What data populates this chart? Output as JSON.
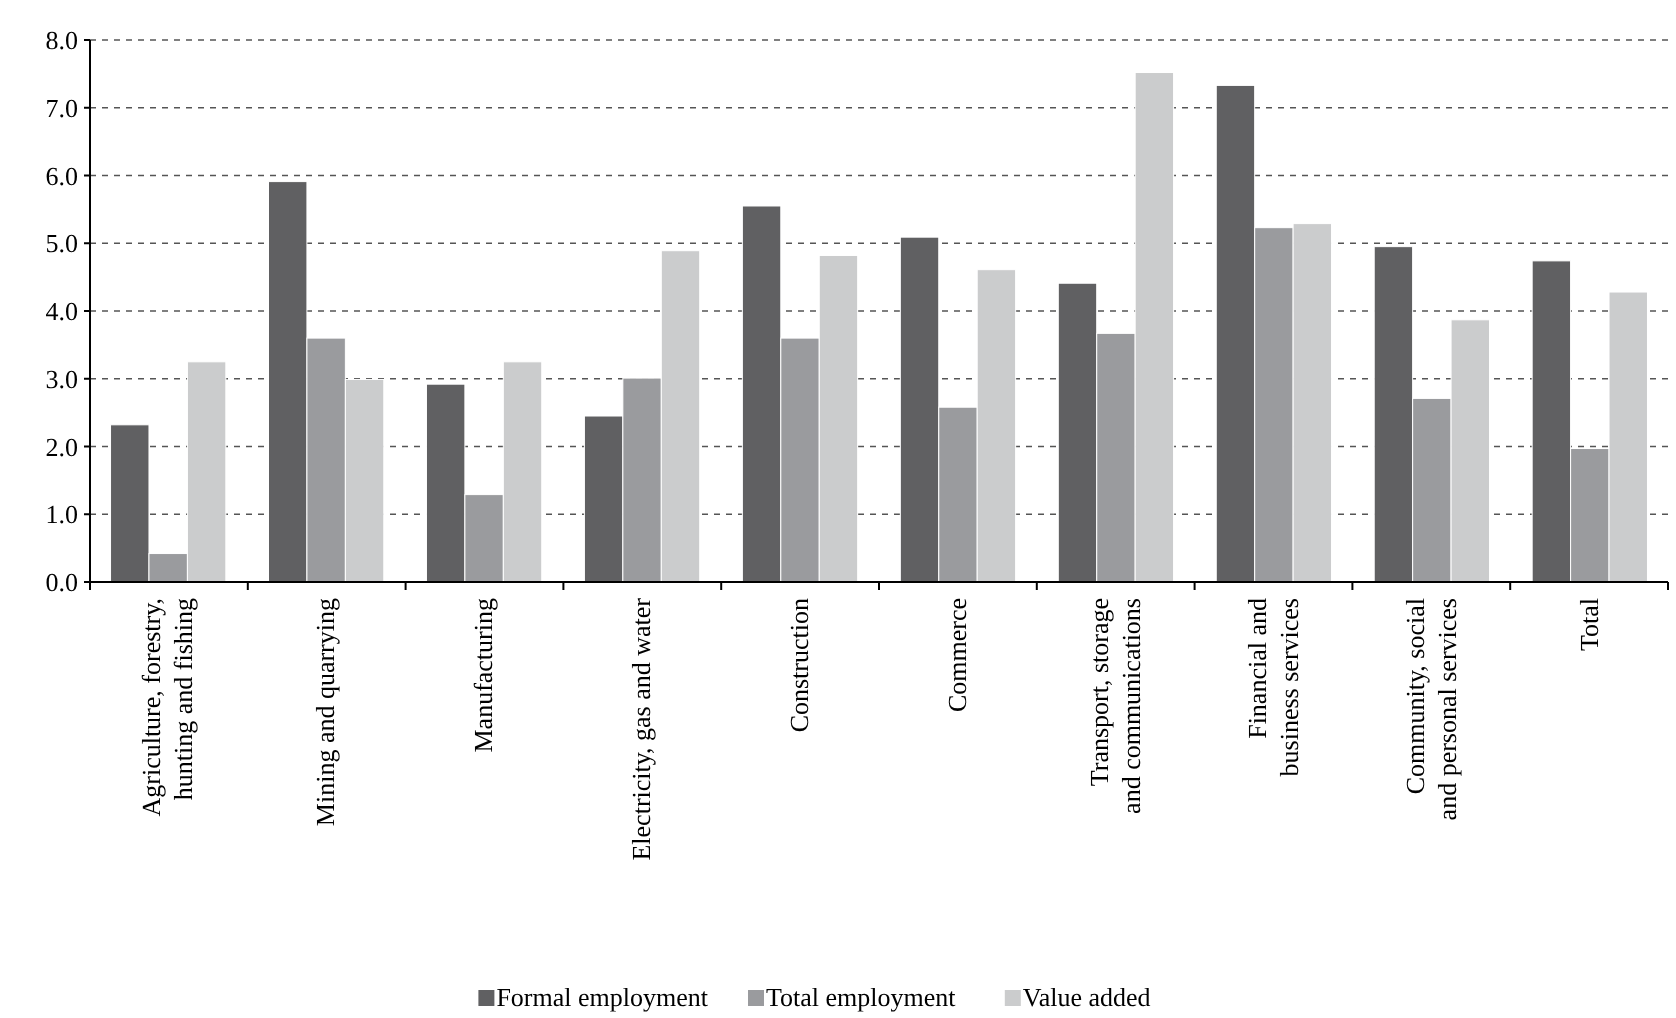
{
  "chart_data": {
    "type": "bar",
    "categories": [
      "Agriculture, forestry,\nhunting and fishing",
      "Mining and quarrying",
      "Manufacturing",
      "Electricity, gas and water",
      "Construction",
      "Commerce",
      "Transport, storage\nand communications",
      "Financial and\nbusiness services",
      "Community, social\nand personal services",
      "Total"
    ],
    "series": [
      {
        "name": "Formal employment",
        "color": "#606062",
        "values": [
          2.32,
          5.91,
          2.92,
          2.45,
          5.55,
          5.09,
          4.41,
          7.33,
          4.95,
          4.74
        ]
      },
      {
        "name": "Total employment",
        "color": "#9a9b9e",
        "values": [
          0.42,
          3.6,
          1.29,
          3.01,
          3.6,
          2.58,
          3.67,
          5.23,
          2.71,
          1.97
        ]
      },
      {
        "name": "Value added",
        "color": "#cbcccd",
        "values": [
          3.25,
          2.99,
          3.25,
          4.89,
          4.82,
          4.61,
          7.52,
          5.29,
          3.87,
          4.28
        ]
      }
    ],
    "ylim": [
      0,
      8
    ],
    "yticks": [
      {
        "value": 0,
        "label": "0.0"
      },
      {
        "value": 1,
        "label": "1.0"
      },
      {
        "value": 2,
        "label": "2.0"
      },
      {
        "value": 3,
        "label": "3.0"
      },
      {
        "value": 4,
        "label": "4.0"
      },
      {
        "value": 5,
        "label": "5.0"
      },
      {
        "value": 6,
        "label": "6.0"
      },
      {
        "value": 7,
        "label": "7.0"
      },
      {
        "value": 8,
        "label": "8.0"
      }
    ],
    "grid": "y",
    "legend": "bottom"
  }
}
